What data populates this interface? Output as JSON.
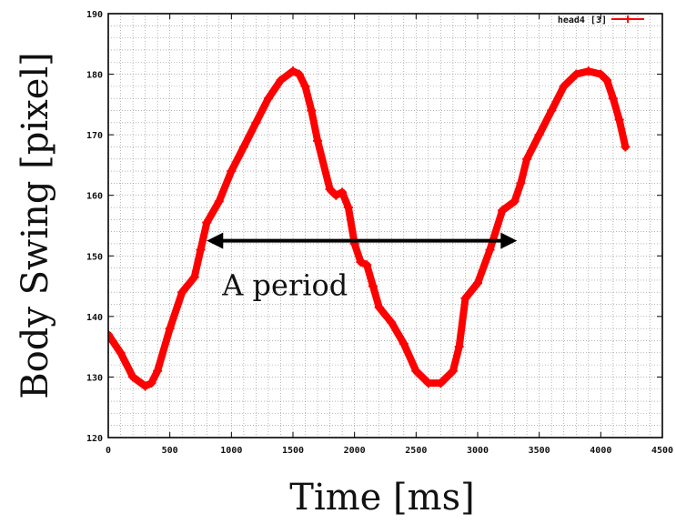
{
  "chart_data": {
    "type": "line",
    "xlabel": "Time [ms]",
    "ylabel": "Body Swing  [pixel]",
    "xlim": [
      0,
      4500
    ],
    "ylim": [
      120,
      190
    ],
    "xticks": [
      0,
      500,
      1000,
      1500,
      2000,
      2500,
      3000,
      3500,
      4000,
      4500
    ],
    "yticks": [
      120,
      130,
      140,
      150,
      160,
      170,
      180,
      190
    ],
    "grid": true,
    "legend_position": "top-right",
    "series": [
      {
        "name": "head4 [3]",
        "color": "#ff0000",
        "marker": "+",
        "x": [
          0,
          100,
          200,
          300,
          350,
          400,
          500,
          600,
          700,
          750,
          800,
          900,
          1000,
          1100,
          1200,
          1300,
          1400,
          1500,
          1550,
          1600,
          1650,
          1700,
          1800,
          1850,
          1900,
          1950,
          2000,
          2050,
          2100,
          2150,
          2200,
          2300,
          2400,
          2500,
          2600,
          2700,
          2800,
          2850,
          2900,
          3000,
          3100,
          3200,
          3300,
          3350,
          3400,
          3500,
          3600,
          3700,
          3800,
          3900,
          4000,
          4050,
          4100,
          4150,
          4200
        ],
        "y": [
          137,
          134,
          130,
          128.5,
          129,
          131,
          138,
          144,
          146.5,
          151,
          155.5,
          159,
          164,
          168,
          172,
          176,
          179,
          180.5,
          180,
          178,
          174,
          169,
          161,
          160,
          160.5,
          158,
          152,
          149,
          148.5,
          145,
          141.5,
          139,
          135.5,
          131,
          129,
          129,
          131,
          135,
          143,
          145.5,
          151,
          157.5,
          159,
          162,
          166,
          170,
          174,
          178,
          180,
          180.5,
          180,
          179,
          176,
          172.5,
          168
        ]
      }
    ],
    "annotations": [
      {
        "text": "A period",
        "x_start": 800,
        "x_end": 3320,
        "y": 152.5
      }
    ]
  },
  "legend": {
    "label": "head4 [3]"
  },
  "annotation": {
    "label": "A period"
  },
  "colors": {
    "series": "#ff0000",
    "arrow": "#000000",
    "grid": "#888888",
    "axis": "#000000"
  }
}
